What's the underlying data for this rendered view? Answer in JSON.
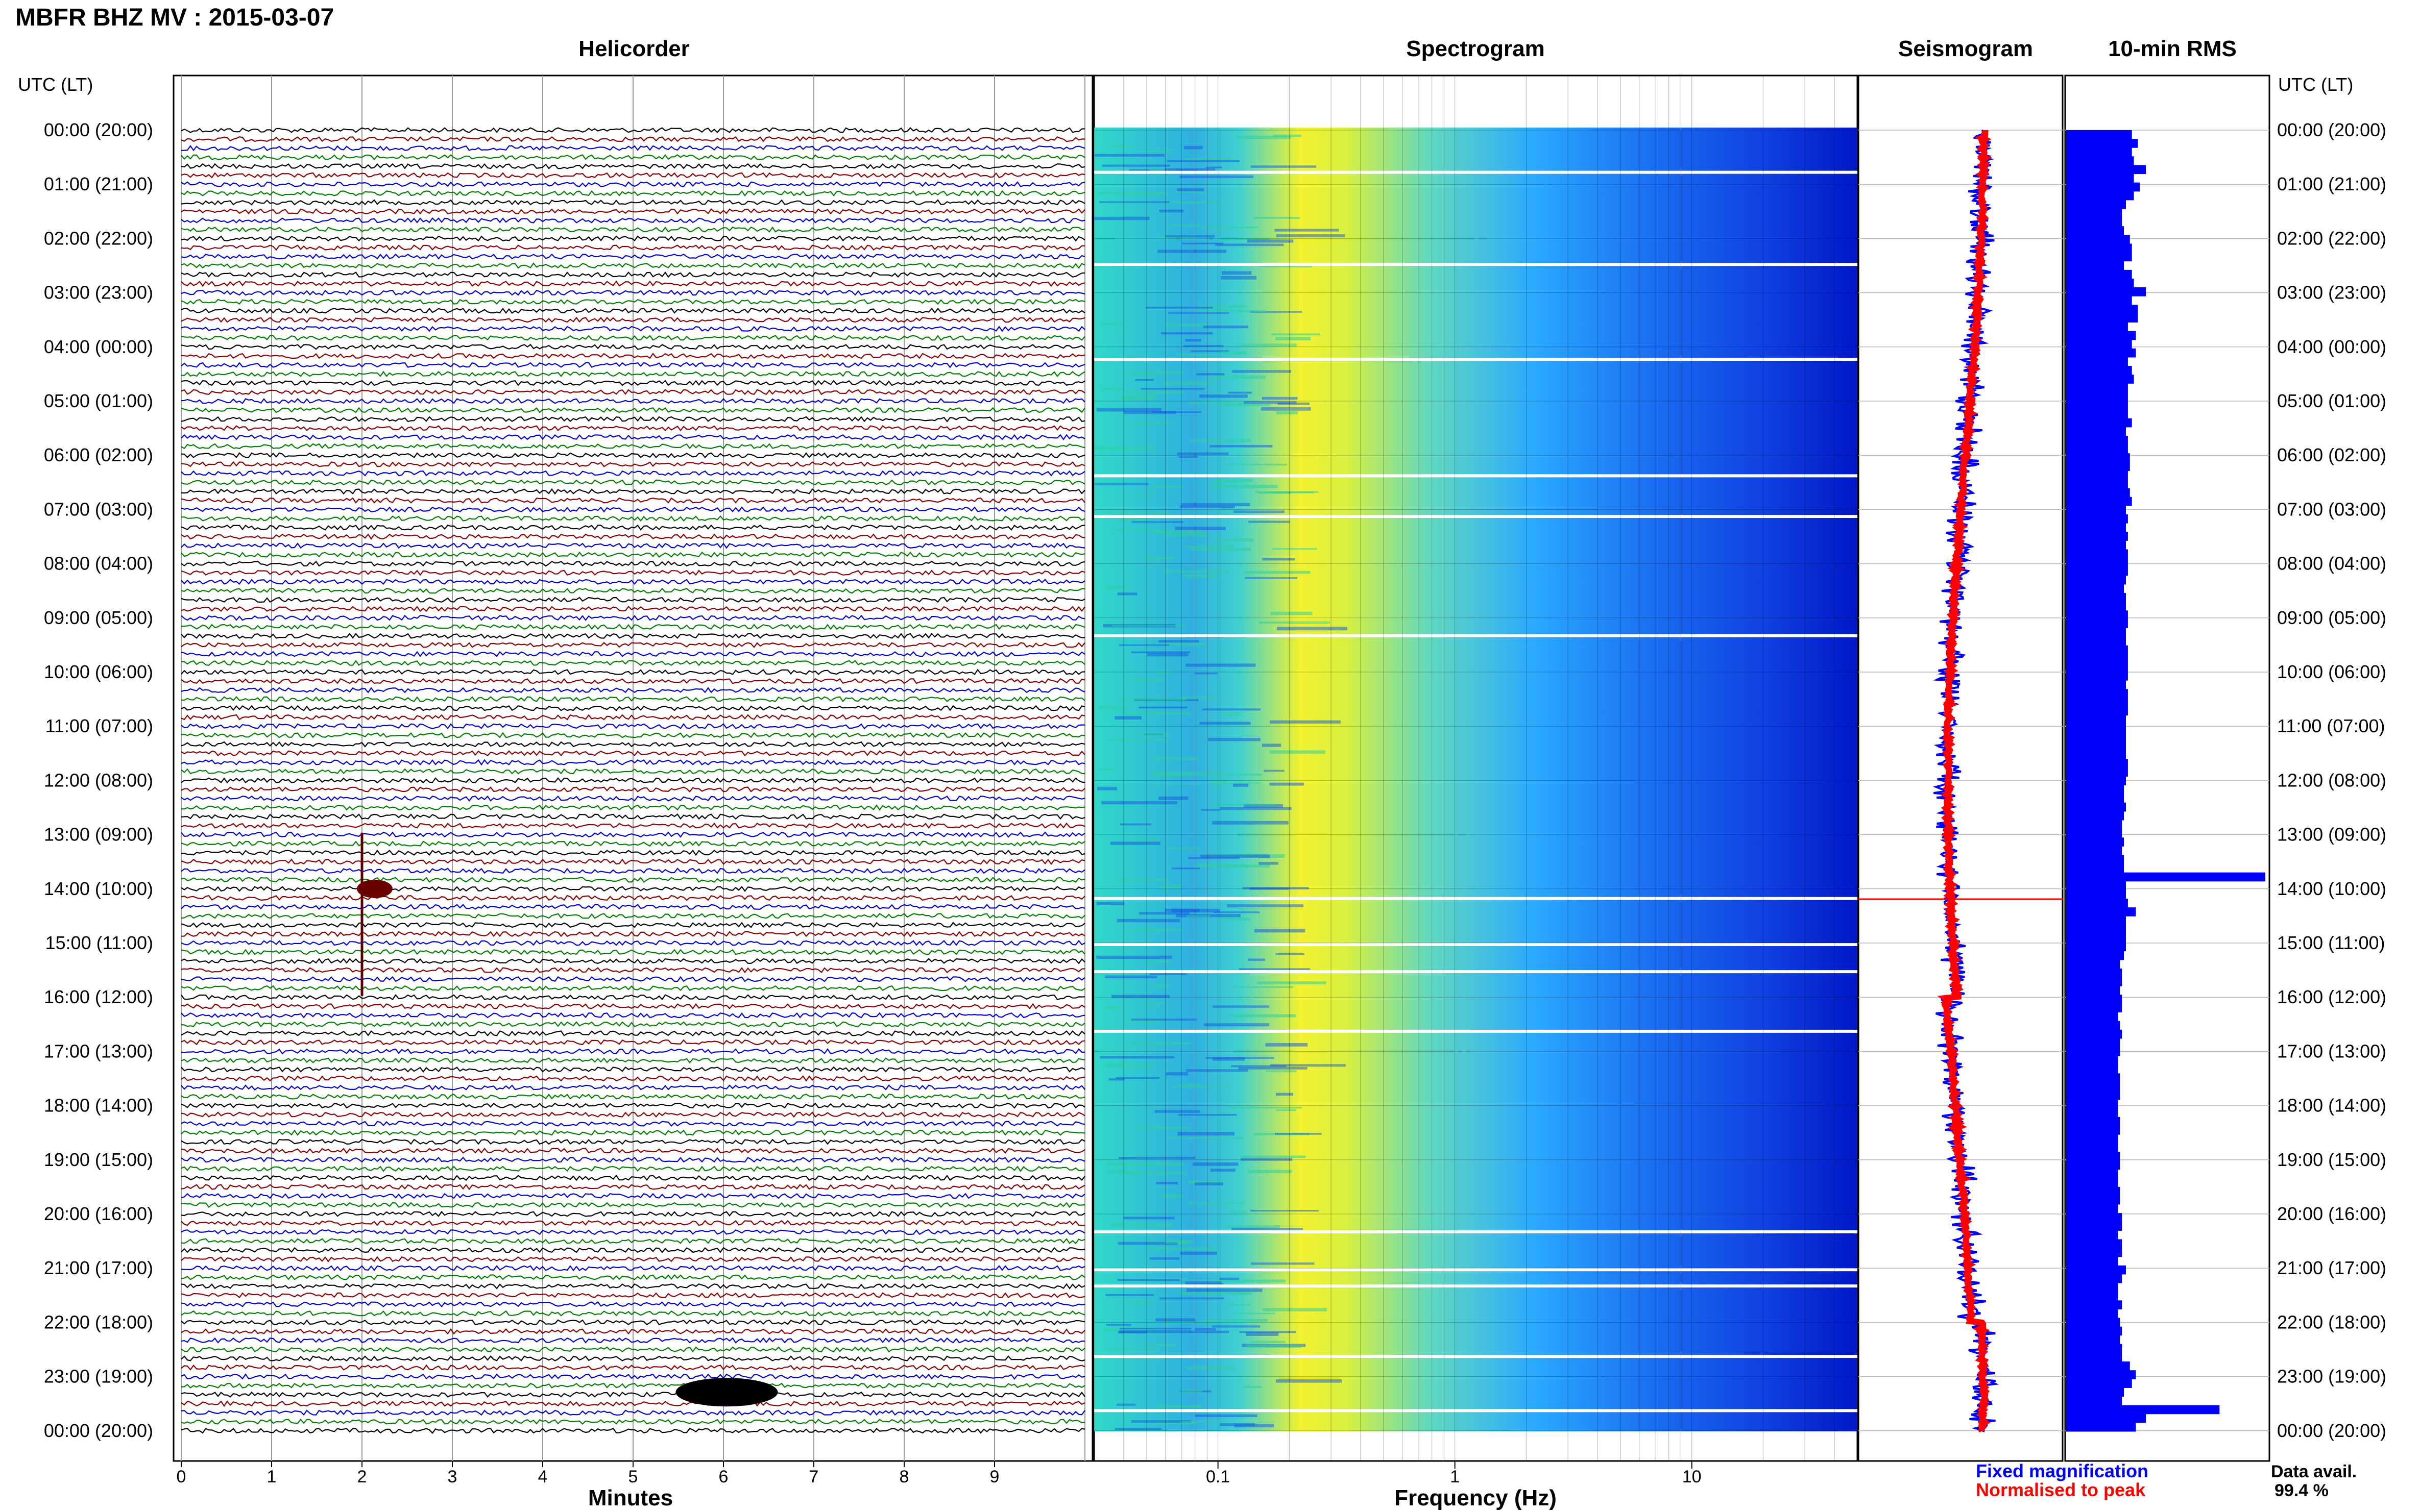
{
  "header": {
    "title": "MBFR BHZ MV : 2015-03-07"
  },
  "panels": {
    "helicorder": "Helicorder",
    "spectrogram": "Spectrogram",
    "seismogram": "Seismogram",
    "rms": "10-min RMS"
  },
  "time_axis": {
    "header_left": "UTC (LT)",
    "header_right": "UTC (LT)",
    "labels": [
      "00:00 (20:00)",
      "01:00 (21:00)",
      "02:00 (22:00)",
      "03:00 (23:00)",
      "04:00 (00:00)",
      "05:00 (01:00)",
      "06:00 (02:00)",
      "07:00 (03:00)",
      "08:00 (04:00)",
      "09:00 (05:00)",
      "10:00 (06:00)",
      "11:00 (07:00)",
      "12:00 (08:00)",
      "13:00 (09:00)",
      "14:00 (10:00)",
      "15:00 (11:00)",
      "16:00 (12:00)",
      "17:00 (13:00)",
      "18:00 (14:00)",
      "19:00 (15:00)",
      "20:00 (16:00)",
      "21:00 (17:00)",
      "22:00 (18:00)",
      "23:00 (19:00)",
      "00:00 (20:00)"
    ]
  },
  "legend": {
    "fixed": "Fixed magnification",
    "normalised": "Normalised to peak",
    "fixed_color": "#0000ff",
    "normalised_color": "#ff0000"
  },
  "availability": {
    "label": "Data avail.",
    "value": "99.4 %"
  },
  "chart_data": [
    {
      "type": "line",
      "name": "helicorder",
      "title": "Helicorder",
      "xlabel": "Minutes",
      "x_ticks": [
        "0",
        "1",
        "2",
        "3",
        "4",
        "5",
        "6",
        "7",
        "8",
        "9"
      ],
      "xlim": [
        0,
        10
      ],
      "trace_colors": [
        "#000000",
        "#8b0000",
        "#0000cc",
        "#008000"
      ],
      "traces_per_hour": 6,
      "events": [
        {
          "hour": 14.0,
          "minute": 2.0,
          "note": "large spike"
        },
        {
          "hour": 23.1,
          "minute": 5.5,
          "note": "tremor burst"
        }
      ]
    },
    {
      "type": "heatmap",
      "name": "spectrogram",
      "title": "Spectrogram",
      "xlabel": "Frequency (Hz)",
      "x_scale": "log",
      "x_ticks": [
        "0.1",
        "1",
        "10"
      ],
      "xlim": [
        0.03,
        50
      ],
      "colormap": [
        "#20d0d0",
        "#ffff30",
        "#30a0ff",
        "#0000d0"
      ],
      "gaps_hours": [
        0.75,
        2.45,
        4.2,
        6.35,
        7.1,
        9.3,
        14.15,
        15.0,
        15.5,
        16.6,
        20.3,
        21.0,
        21.3,
        22.6,
        23.6
      ]
    },
    {
      "type": "line",
      "name": "seismogram",
      "title": "Seismogram",
      "series": [
        {
          "name": "Fixed magnification",
          "color": "#0000ff"
        },
        {
          "name": "Normalised to peak",
          "color": "#ff0000"
        }
      ]
    },
    {
      "type": "bar",
      "name": "rms",
      "title": "10-min RMS",
      "orientation": "horizontal",
      "color": "#0000ff",
      "values": [
        0.33,
        0.36,
        0.33,
        0.34,
        0.4,
        0.34,
        0.37,
        0.34,
        0.3,
        0.28,
        0.28,
        0.29,
        0.32,
        0.33,
        0.33,
        0.29,
        0.33,
        0.34,
        0.4,
        0.33,
        0.36,
        0.36,
        0.31,
        0.35,
        0.33,
        0.35,
        0.31,
        0.33,
        0.34,
        0.31,
        0.31,
        0.31,
        0.31,
        0.33,
        0.3,
        0.31,
        0.31,
        0.32,
        0.32,
        0.31,
        0.31,
        0.32,
        0.33,
        0.3,
        0.31,
        0.3,
        0.31,
        0.3,
        0.31,
        0.31,
        0.31,
        0.3,
        0.29,
        0.3,
        0.3,
        0.31,
        0.31,
        0.3,
        0.3,
        0.31,
        0.31,
        0.31,
        0.31,
        0.3,
        0.31,
        0.31,
        0.31,
        0.3,
        0.3,
        0.3,
        0.3,
        0.3,
        0.31,
        0.31,
        0.3,
        0.29,
        0.29,
        0.3,
        0.29,
        0.28,
        0.28,
        0.29,
        0.28,
        0.29,
        0.29,
        1.0,
        0.3,
        0.3,
        0.31,
        0.35,
        0.3,
        0.3,
        0.3,
        0.3,
        0.29,
        0.27,
        0.28,
        0.28,
        0.27,
        0.28,
        0.28,
        0.26,
        0.27,
        0.28,
        0.27,
        0.27,
        0.26,
        0.26,
        0.27,
        0.27,
        0.27,
        0.26,
        0.26,
        0.27,
        0.27,
        0.26,
        0.26,
        0.27,
        0.27,
        0.26,
        0.26,
        0.27,
        0.27,
        0.26,
        0.28,
        0.28,
        0.26,
        0.28,
        0.28,
        0.26,
        0.3,
        0.28,
        0.26,
        0.26,
        0.28,
        0.26,
        0.27,
        0.28,
        0.27,
        0.28,
        0.28,
        0.32,
        0.35,
        0.33,
        0.29,
        0.28,
        0.77,
        0.4,
        0.35
      ]
    }
  ]
}
